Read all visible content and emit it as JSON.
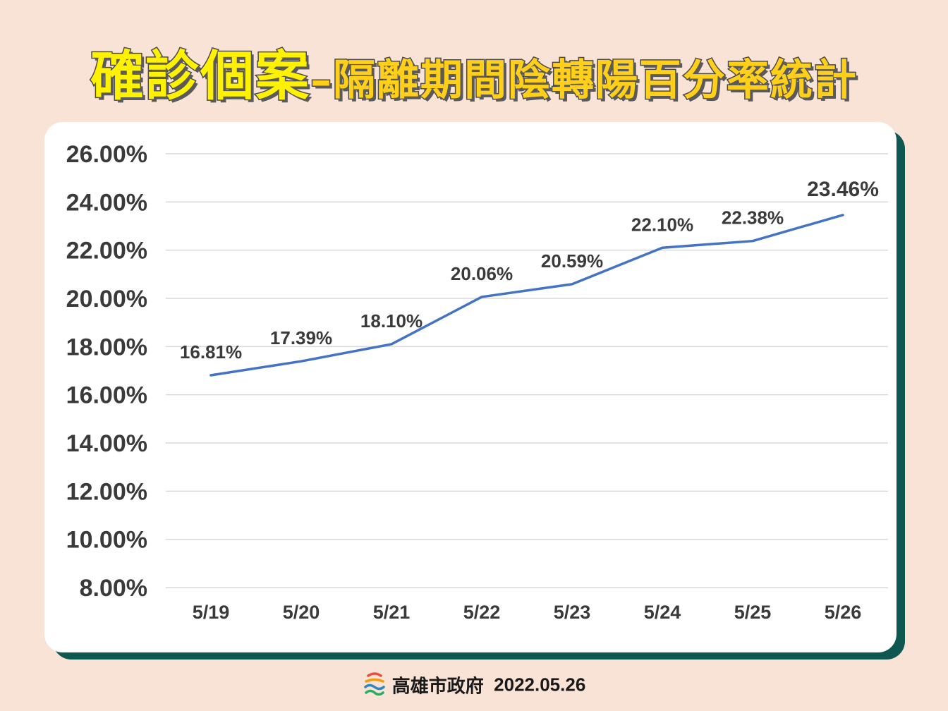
{
  "title": {
    "main": "確診個案",
    "sub": "–隔離期間陰轉陽百分率統計"
  },
  "footer": {
    "org": "高雄市政府",
    "date": "2022.05.26"
  },
  "colors": {
    "background": "#f9e3d6",
    "card_shadow": "#0f5751",
    "line": "#4472c4",
    "title_main": "#fff200",
    "title_sub": "#ffcf1a"
  },
  "chart_data": {
    "type": "line",
    "categories": [
      "5/19",
      "5/20",
      "5/21",
      "5/22",
      "5/23",
      "5/24",
      "5/25",
      "5/26"
    ],
    "series": [
      {
        "values": [
          16.81,
          17.39,
          18.1,
          20.06,
          20.59,
          22.1,
          22.38,
          23.46
        ],
        "labels": [
          "16.81%",
          "17.39%",
          "18.10%",
          "20.06%",
          "20.59%",
          "22.10%",
          "22.38%",
          "23.46%"
        ]
      }
    ],
    "y_ticks": [
      "26.00%",
      "24.00%",
      "22.00%",
      "20.00%",
      "18.00%",
      "16.00%",
      "14.00%",
      "12.00%",
      "10.00%",
      "8.00%"
    ],
    "ylim": [
      8,
      26
    ],
    "grid": true,
    "legend": "none"
  }
}
